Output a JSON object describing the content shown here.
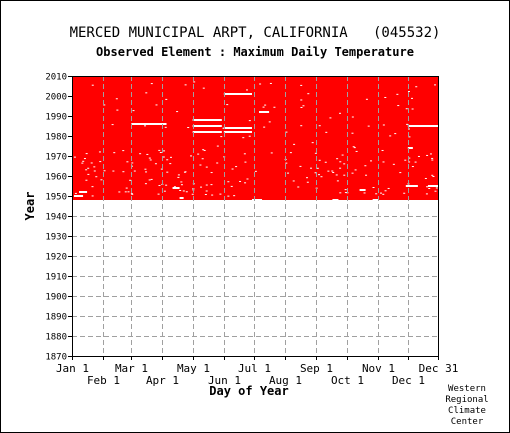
{
  "chart_data": {
    "type": "heatmap",
    "title": "MERCED MUNICIPAL ARPT, CALIFORNIA   (045532)",
    "subtitle": "Observed Element : Maximum Daily Temperature",
    "xlabel": "Day of Year",
    "ylabel": "Year",
    "y_range": [
      1870,
      2010
    ],
    "y_ticks": [
      1870,
      1880,
      1890,
      1900,
      1910,
      1920,
      1930,
      1940,
      1950,
      1960,
      1970,
      1980,
      1990,
      2000,
      2010
    ],
    "x_range": [
      1,
      365
    ],
    "x_ticks": [
      {
        "label": "Jan 1",
        "day": 1,
        "row": "upper"
      },
      {
        "label": "Feb 1",
        "day": 32,
        "row": "lower"
      },
      {
        "label": "Mar 1",
        "day": 60,
        "row": "upper"
      },
      {
        "label": "Apr 1",
        "day": 91,
        "row": "lower"
      },
      {
        "label": "May 1",
        "day": 121,
        "row": "upper"
      },
      {
        "label": "Jun 1",
        "day": 152,
        "row": "lower"
      },
      {
        "label": "Jul 1",
        "day": 182,
        "row": "upper"
      },
      {
        "label": "Aug 1",
        "day": 213,
        "row": "lower"
      },
      {
        "label": "Sep 1",
        "day": 244,
        "row": "upper"
      },
      {
        "label": "Oct 1",
        "day": 274,
        "row": "lower"
      },
      {
        "label": "Nov 1",
        "day": 305,
        "row": "upper"
      },
      {
        "label": "Dec 1",
        "day": 335,
        "row": "lower"
      },
      {
        "label": "Dec 31",
        "day": 365,
        "row": "upper"
      }
    ],
    "grid": true,
    "data_color": "#ff0000",
    "period_of_record": {
      "start_year": 1948,
      "end_year": 2010
    },
    "missing_segments": [
      {
        "year": 1986,
        "start_day": 60,
        "end_day": 95
      },
      {
        "year": 2001,
        "start_day": 152,
        "end_day": 180
      },
      {
        "year": 1984,
        "start_day": 152,
        "end_day": 180
      },
      {
        "year": 1982,
        "start_day": 152,
        "end_day": 180
      },
      {
        "year": 1988,
        "start_day": 121,
        "end_day": 150
      },
      {
        "year": 1985,
        "start_day": 121,
        "end_day": 150
      },
      {
        "year": 1982,
        "start_day": 121,
        "end_day": 150
      },
      {
        "year": 1992,
        "start_day": 187,
        "end_day": 197
      },
      {
        "year": 1985,
        "start_day": 335,
        "end_day": 365
      },
      {
        "year": 1974,
        "start_day": 335,
        "end_day": 340
      },
      {
        "year": 1955,
        "start_day": 333,
        "end_day": 345
      },
      {
        "year": 1953,
        "start_day": 287,
        "end_day": 293
      },
      {
        "year": 1952,
        "start_day": 8,
        "end_day": 16
      },
      {
        "year": 1950,
        "start_day": 3,
        "end_day": 12
      },
      {
        "year": 1949,
        "start_day": 108,
        "end_day": 112
      },
      {
        "year": 1955,
        "start_day": 355,
        "end_day": 365
      },
      {
        "year": 1954,
        "start_day": 101,
        "end_day": 108
      },
      {
        "year": 1948,
        "start_day": 180,
        "end_day": 190
      },
      {
        "year": 1948,
        "start_day": 260,
        "end_day": 266
      },
      {
        "year": 1948,
        "start_day": 300,
        "end_day": 306
      }
    ]
  },
  "source_note": [
    "Western",
    "Regional",
    "Climate",
    "Center"
  ]
}
